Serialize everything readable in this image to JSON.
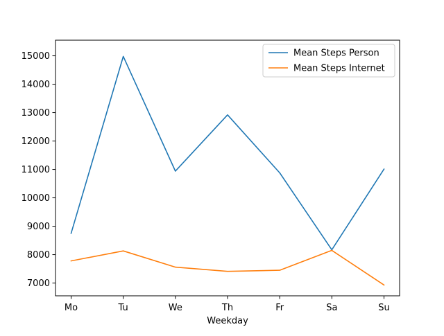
{
  "chart_data": {
    "type": "line",
    "title": "",
    "xlabel": "Weekday",
    "ylabel": "",
    "categories": [
      "Mo",
      "Tu",
      "We",
      "Th",
      "Fr",
      "Sa",
      "Su"
    ],
    "ylim": [
      6550,
      15550
    ],
    "yticks": [
      7000,
      8000,
      9000,
      10000,
      11000,
      12000,
      13000,
      14000,
      15000
    ],
    "grid": false,
    "legend_position": "top-right",
    "series": [
      {
        "name": "Mean Steps Person",
        "color": "#1f77b4",
        "values": [
          8750,
          14980,
          10940,
          12920,
          10880,
          8170,
          11010
        ]
      },
      {
        "name": "Mean Steps Internet",
        "color": "#ff7f0e",
        "values": [
          7780,
          8130,
          7560,
          7410,
          7450,
          8150,
          6930
        ]
      }
    ]
  }
}
